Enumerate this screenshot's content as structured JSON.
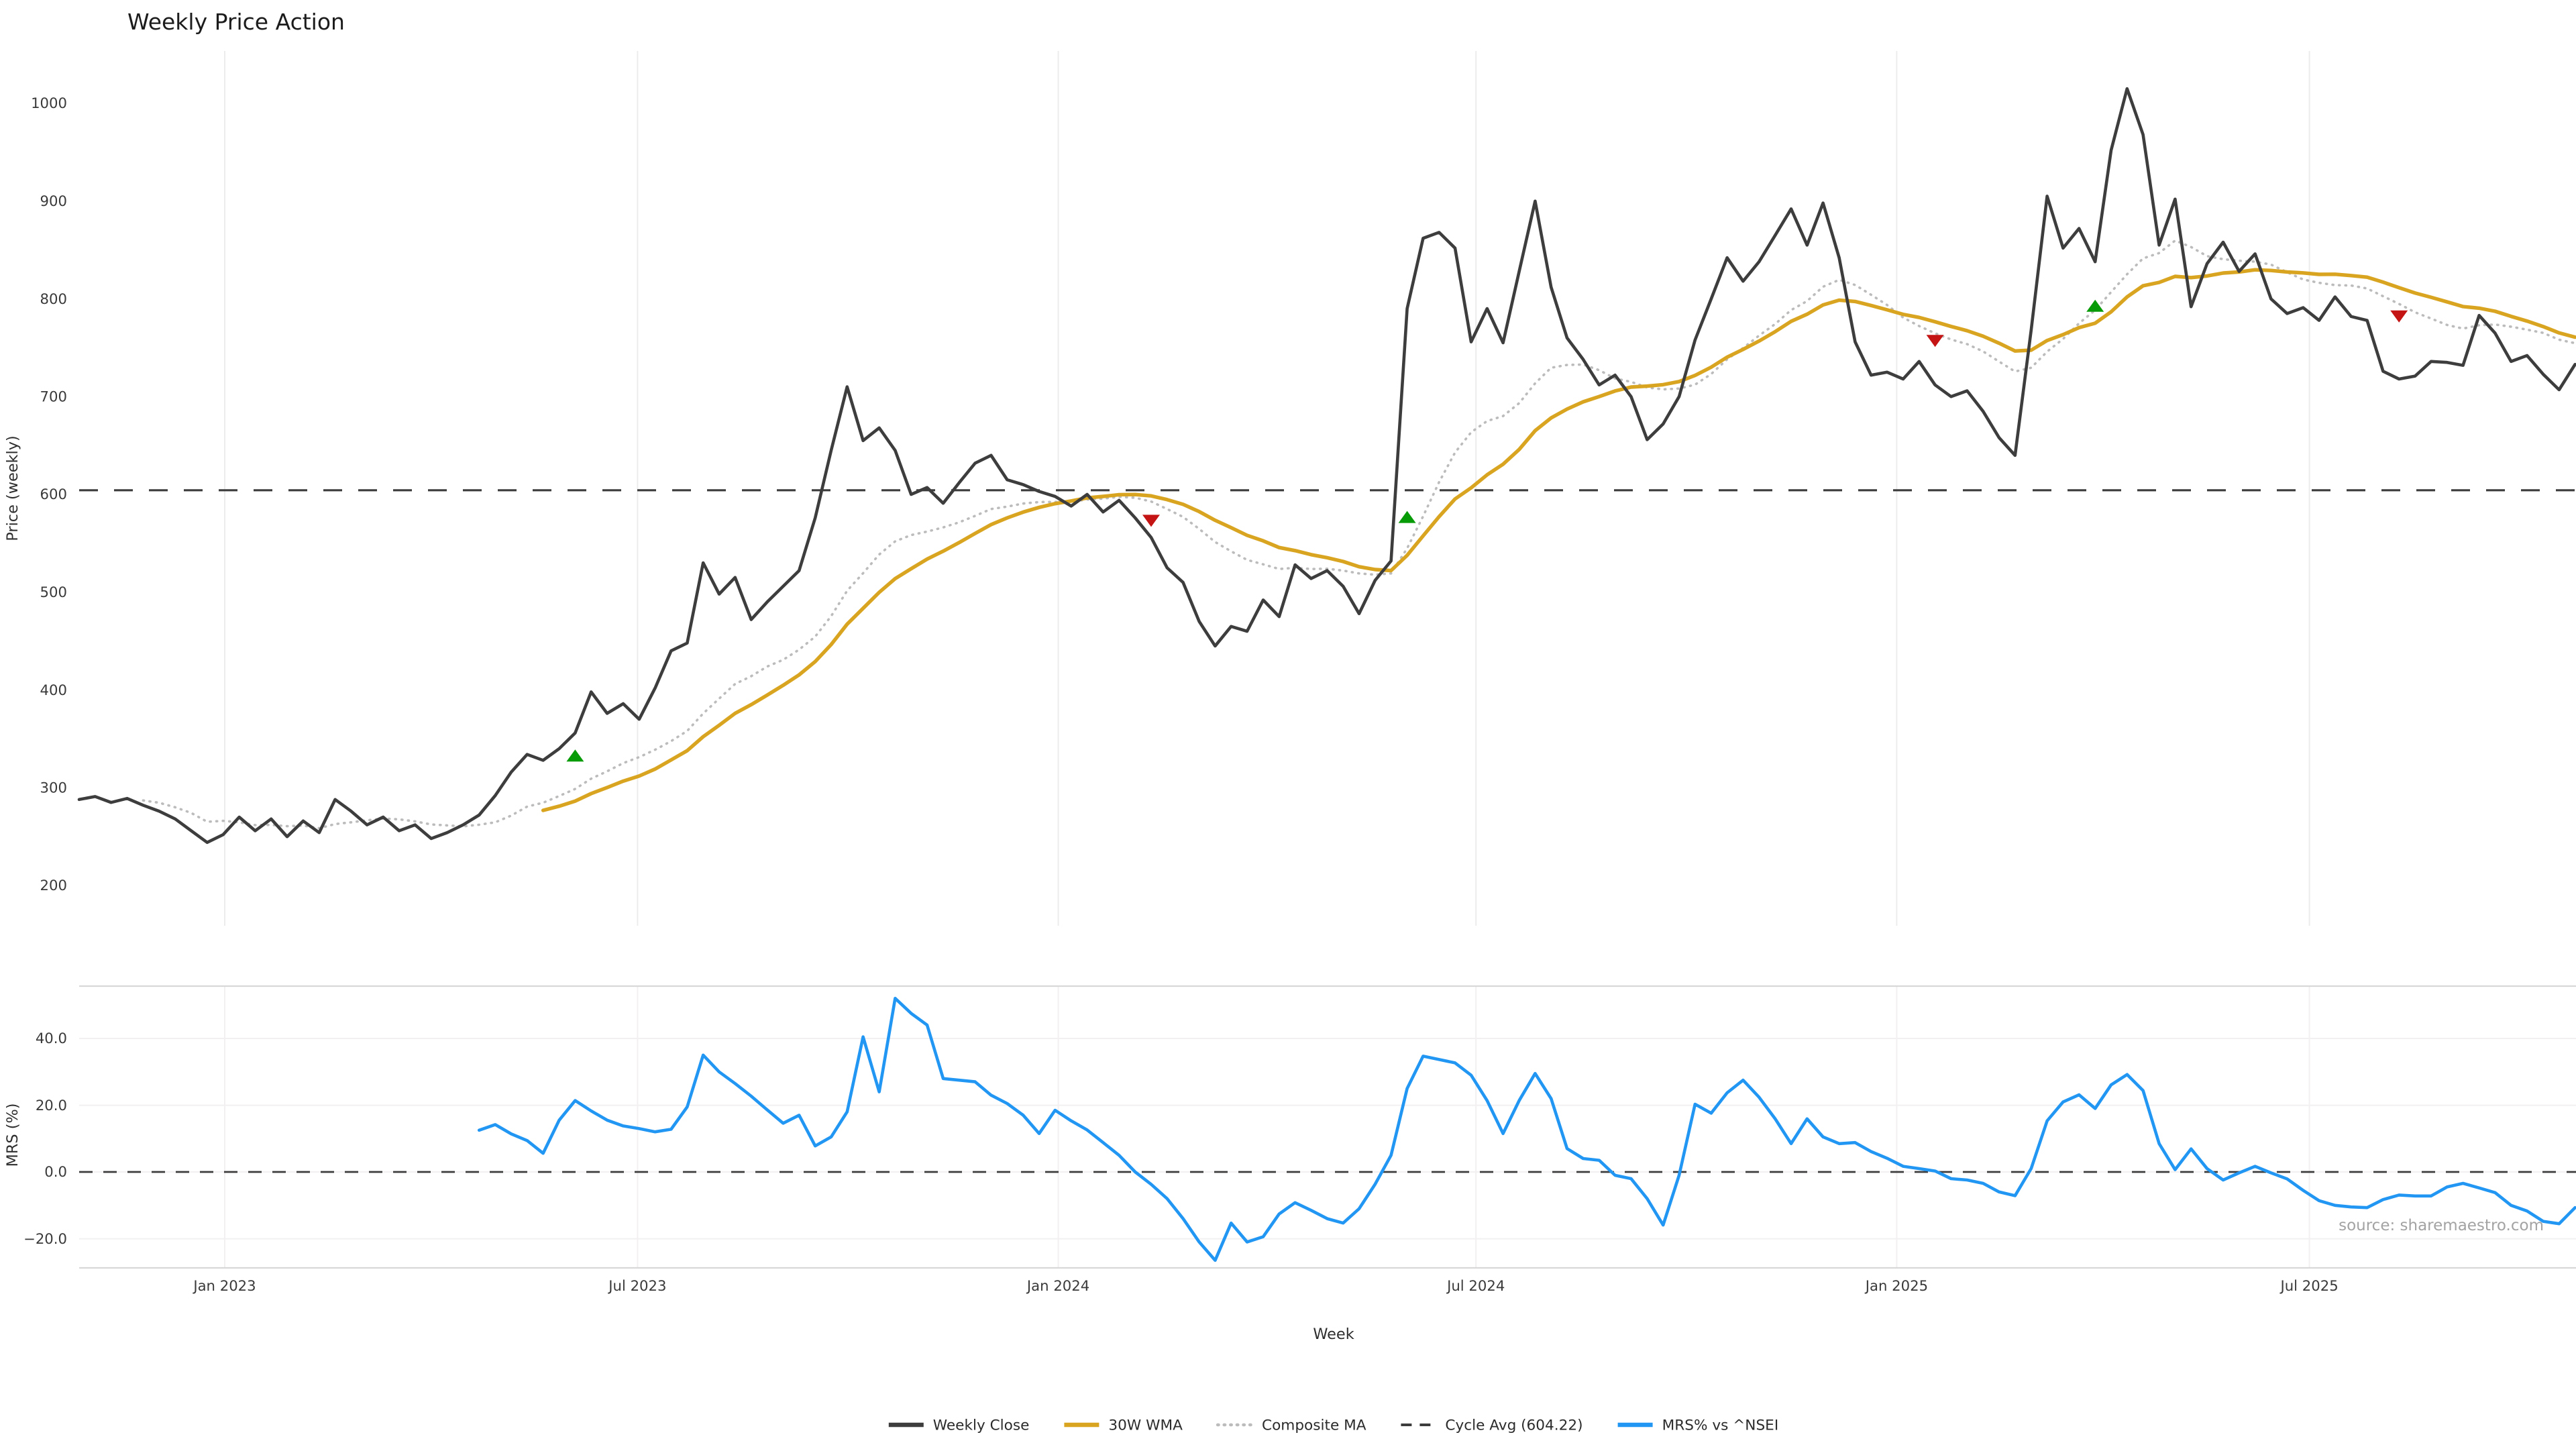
{
  "title": "Weekly Price Action",
  "source_note": "source: sharemaestro.com",
  "colors": {
    "close": "#3d3d3d",
    "wma": "#d9a521",
    "composite": "#bcbcbc",
    "cycle_avg": "#3c3c3c",
    "mrs": "#2196f3",
    "buy": "#089b08",
    "sell": "#c41414",
    "grid": "#ececec",
    "grid_soft": "#f2f0f0",
    "spine": "#d8d8d8",
    "background": "#ffffff"
  },
  "legend": {
    "items": [
      {
        "label": "Weekly Close",
        "style": "solid",
        "color": "#3d3d3d",
        "width": 3.2
      },
      {
        "label": "30W WMA",
        "style": "solid",
        "color": "#d9a521",
        "width": 3.2
      },
      {
        "label": "Composite MA",
        "style": "dotted",
        "color": "#bcbcbc",
        "width": 2.2
      },
      {
        "label": "Cycle Avg (604.22)",
        "style": "dashed",
        "color": "#3c3c3c",
        "width": 2.0
      },
      {
        "label": "MRS% vs ^NSEI",
        "style": "solid",
        "color": "#2196f3",
        "width": 3.2
      }
    ]
  },
  "chart_data": [
    {
      "type": "line",
      "panel": "price",
      "title": "Weekly Price Action",
      "xlabel": "Week",
      "ylabel": "Price (weekly)",
      "ylim": [
        170,
        1060
      ],
      "yticks": [
        1000,
        900,
        800,
        700,
        600,
        500,
        400,
        300,
        200
      ],
      "xticks": [
        {
          "label": "Jan 2023",
          "week": 9.1
        },
        {
          "label": "Jul 2023",
          "week": 34.9
        },
        {
          "label": "Jan 2024",
          "week": 61.2
        },
        {
          "label": "Jul 2024",
          "week": 87.3
        },
        {
          "label": "Jan 2025",
          "week": 113.6
        },
        {
          "label": "Jul 2025",
          "week": 139.4
        }
      ],
      "x_unit": "week_index",
      "cycle_avg": 604.22,
      "series": [
        {
          "name": "Weekly Close",
          "start_week": 0,
          "values": [
            288,
            291,
            285,
            289,
            282,
            276,
            268,
            256,
            244,
            252,
            270,
            256,
            268,
            250,
            266,
            254,
            288,
            276,
            262,
            270,
            256,
            262,
            248,
            254,
            262,
            272,
            292,
            316,
            334,
            328,
            340,
            356,
            398,
            376,
            386,
            370,
            402,
            440,
            448,
            530,
            498,
            515,
            472,
            490,
            506,
            522,
            576,
            645,
            710,
            655,
            668,
            645,
            600,
            607,
            591,
            612,
            632,
            640,
            615,
            610,
            603,
            598,
            588,
            600,
            582,
            594,
            576,
            556,
            525,
            510,
            470,
            445,
            465,
            460,
            492,
            475,
            528,
            514,
            522,
            506,
            478,
            512,
            532,
            790,
            862,
            868,
            852,
            756,
            790,
            755,
            828,
            900,
            812,
            760,
            738,
            712,
            722,
            700,
            656,
            672,
            700,
            758,
            800,
            842,
            818,
            838,
            865,
            892,
            855,
            898,
            842,
            756,
            722,
            725,
            718,
            736,
            712,
            700,
            706,
            685,
            658,
            640,
            768,
            905,
            852,
            872,
            838,
            952,
            1015,
            968,
            855,
            902,
            792,
            836,
            858,
            828,
            846,
            800,
            785,
            791,
            778,
            802,
            782,
            778,
            726,
            718,
            721,
            736,
            735,
            732,
            783,
            765,
            736,
            742,
            723,
            707,
            733
          ]
        },
        {
          "name": "30W WMA",
          "derived": {
            "from": "Weekly Close",
            "type": "wma",
            "window": 30
          }
        },
        {
          "name": "Composite MA",
          "derived": {
            "from": "Weekly Close",
            "type": "composite_sma",
            "windows": [
              5,
              10,
              20,
              30
            ]
          }
        },
        {
          "name": "Cycle Avg (604.22)",
          "type": "hline",
          "value": 604.22
        }
      ],
      "markers": {
        "buy": [
          {
            "week": 31,
            "price": 333
          },
          {
            "week": 83,
            "price": 577
          },
          {
            "week": 126,
            "price": 793
          }
        ],
        "sell": [
          {
            "week": 67,
            "price": 573
          },
          {
            "week": 116,
            "price": 757
          },
          {
            "week": 145,
            "price": 782
          }
        ]
      },
      "legend_position": "bottom-center",
      "grid": "vertical-only"
    },
    {
      "type": "line",
      "panel": "mrs",
      "xlabel": "Week",
      "ylabel": "MRS (%)",
      "ylim": [
        -30,
        56
      ],
      "yticks": [
        {
          "label": "40.0",
          "value": 40
        },
        {
          "label": "20.0",
          "value": 20
        },
        {
          "label": "0.0",
          "value": 0
        },
        {
          "label": "−20.0",
          "value": -20
        }
      ],
      "zero_line": 0,
      "series": [
        {
          "name": "MRS% vs ^NSEI",
          "start_week": 25,
          "values": [
            12.5,
            14.2,
            11.4,
            9.4,
            5.6,
            15.5,
            21.4,
            18.3,
            15.5,
            13.8,
            13.0,
            12.0,
            12.8,
            19.5,
            35.0,
            30.0,
            26.5,
            22.7,
            18.6,
            14.6,
            17.0,
            7.8,
            10.5,
            18.0,
            40.5,
            24.0,
            52.0,
            47.5,
            44.0,
            28.0,
            27.5,
            27.0,
            23.0,
            20.5,
            17.0,
            11.5,
            18.5,
            15.3,
            12.6,
            8.8,
            5.0,
            0.0,
            -3.7,
            -8.0,
            -14.0,
            -21.0,
            -26.5,
            -15.3,
            -21.0,
            -19.4,
            -12.6,
            -9.2,
            -11.5,
            -14.0,
            -15.3,
            -11.0,
            -3.7,
            5.0,
            25.0,
            34.7,
            33.7,
            32.7,
            29.0,
            21.4,
            11.5,
            21.4,
            29.5,
            22.0,
            7.0,
            4.0,
            3.5,
            -1.0,
            -2.0,
            -8.0,
            -15.9,
            -1.0,
            20.3,
            17.6,
            23.7,
            27.5,
            22.4,
            15.9,
            8.5,
            15.9,
            10.5,
            8.5,
            8.8,
            6.1,
            4.1,
            1.7,
            1.0,
            0.3,
            -2.0,
            -2.4,
            -3.4,
            -6.0,
            -7.1,
            1.0,
            15.3,
            21.0,
            23.1,
            19.0,
            26.1,
            29.2,
            24.4,
            8.5,
            0.7,
            6.9,
            1.0,
            -2.4,
            -0.3,
            1.7,
            -0.3,
            -2.1,
            -5.5,
            -8.6,
            -10.0,
            -10.5,
            -10.7,
            -8.3,
            -6.9,
            -7.2,
            -7.2,
            -4.5,
            -3.4,
            -4.8,
            -6.2,
            -10.0,
            -11.7,
            -14.8,
            -15.5,
            -10.7
          ]
        }
      ],
      "grid": "horizontal-only"
    }
  ],
  "axes_text": {
    "price_ylabel": "Price (weekly)",
    "mrs_ylabel": "MRS (%)",
    "xlabel": "Week"
  }
}
